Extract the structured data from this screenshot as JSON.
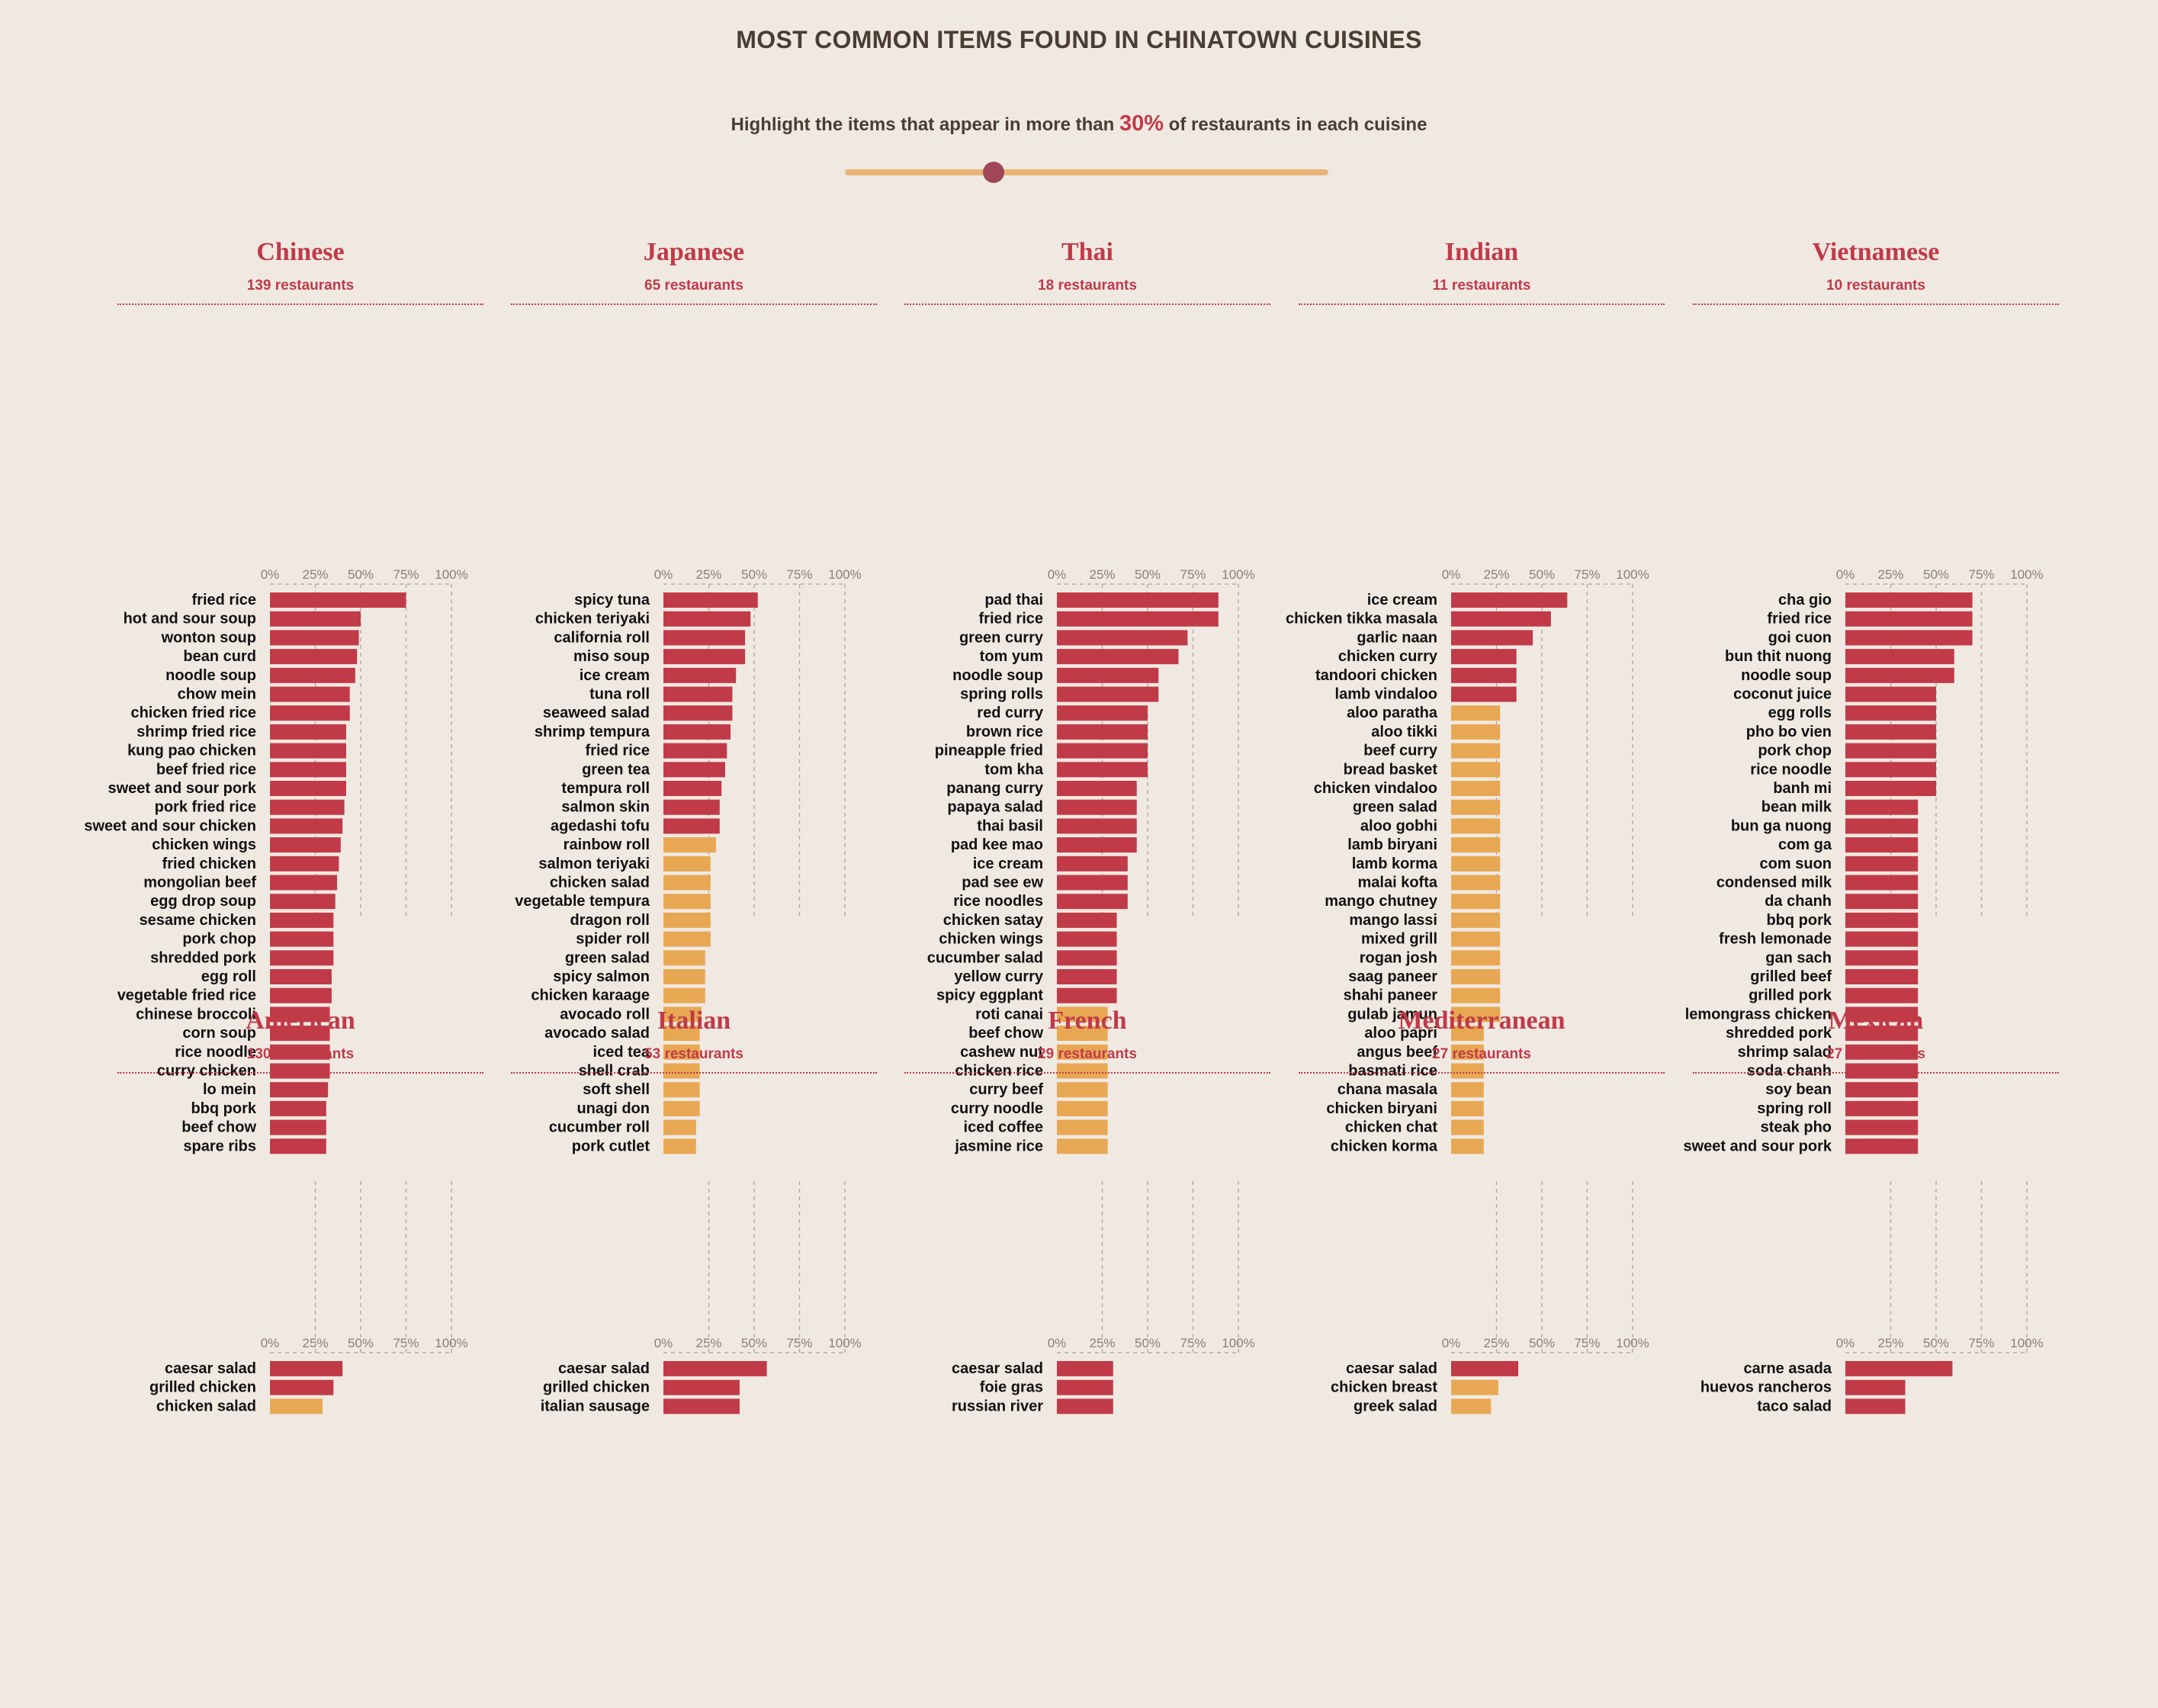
{
  "header": {
    "title": "MOST COMMON ITEMS FOUND IN CHINATOWN CUISINES",
    "subtitle_before": "Highlight the items that appear in more than ",
    "threshold_text": "30%",
    "subtitle_after": " of restaurants in each cuisine"
  },
  "slider": {
    "value": 30,
    "min": 0,
    "max": 100
  },
  "colors": {
    "above": "#c13a48",
    "below": "#e8a853",
    "title": "#c13a48",
    "thumb": "#a04657",
    "track": "#e8b577"
  },
  "chart_data": {
    "type": "bar",
    "orientation": "horizontal",
    "threshold": 30,
    "xlim": [
      0,
      100
    ],
    "ticks": [
      "0%",
      "25%",
      "50%",
      "75%",
      "100%"
    ],
    "panels": [
      {
        "cuisine": "Chinese",
        "restaurants": "139 restaurants",
        "categories": [
          "fried rice",
          "hot and sour soup",
          "wonton soup",
          "bean curd",
          "noodle soup",
          "chow mein",
          "chicken fried rice",
          "shrimp fried rice",
          "kung pao chicken",
          "beef fried rice",
          "sweet and sour pork",
          "pork fried rice",
          "sweet and sour chicken",
          "chicken wings",
          "fried chicken",
          "mongolian beef",
          "egg drop soup",
          "sesame chicken",
          "pork chop",
          "shredded pork",
          "egg roll",
          "vegetable fried rice",
          "chinese broccoli",
          "corn soup",
          "rice noodle",
          "curry chicken",
          "lo mein",
          "bbq pork",
          "beef chow",
          "spare ribs"
        ],
        "values": [
          75,
          50,
          49,
          48,
          47,
          44,
          44,
          42,
          42,
          42,
          42,
          41,
          40,
          39,
          38,
          37,
          36,
          35,
          35,
          35,
          34,
          34,
          33,
          33,
          33,
          33,
          32,
          31,
          31,
          31
        ]
      },
      {
        "cuisine": "Japanese",
        "restaurants": "65 restaurants",
        "categories": [
          "spicy tuna",
          "chicken teriyaki",
          "california roll",
          "miso soup",
          "ice cream",
          "tuna roll",
          "seaweed salad",
          "shrimp tempura",
          "fried rice",
          "green tea",
          "tempura roll",
          "salmon skin",
          "agedashi tofu",
          "rainbow roll",
          "salmon teriyaki",
          "chicken salad",
          "vegetable tempura",
          "dragon roll",
          "spider roll",
          "green salad",
          "spicy salmon",
          "chicken karaage",
          "avocado roll",
          "avocado salad",
          "iced tea",
          "shell crab",
          "soft shell",
          "unagi don",
          "cucumber roll",
          "pork cutlet"
        ],
        "values": [
          52,
          48,
          45,
          45,
          40,
          38,
          38,
          37,
          35,
          34,
          32,
          31,
          31,
          29,
          26,
          26,
          26,
          26,
          26,
          23,
          23,
          23,
          21,
          20,
          20,
          20,
          20,
          20,
          18,
          18
        ]
      },
      {
        "cuisine": "Thai",
        "restaurants": "18 restaurants",
        "categories": [
          "pad thai",
          "fried rice",
          "green curry",
          "tom yum",
          "noodle soup",
          "spring rolls",
          "red curry",
          "brown rice",
          "pineapple fried",
          "tom kha",
          "panang curry",
          "papaya salad",
          "thai basil",
          "pad kee mao",
          "ice cream",
          "pad see ew",
          "rice noodles",
          "chicken satay",
          "chicken wings",
          "cucumber salad",
          "yellow curry",
          "spicy eggplant",
          "roti canai",
          "beef chow",
          "cashew nut",
          "chicken rice",
          "curry beef",
          "curry noodle",
          "iced coffee",
          "jasmine rice"
        ],
        "values": [
          89,
          89,
          72,
          67,
          56,
          56,
          50,
          50,
          50,
          50,
          44,
          44,
          44,
          44,
          39,
          39,
          39,
          33,
          33,
          33,
          33,
          33,
          28,
          28,
          28,
          28,
          28,
          28,
          28,
          28
        ]
      },
      {
        "cuisine": "Indian",
        "restaurants": "11 restaurants",
        "categories": [
          "ice cream",
          "chicken tikka masala",
          "garlic naan",
          "chicken curry",
          "tandoori chicken",
          "lamb vindaloo",
          "aloo paratha",
          "aloo tikki",
          "beef curry",
          "bread basket",
          "chicken vindaloo",
          "green salad",
          "aloo gobhi",
          "lamb biryani",
          "lamb korma",
          "malai kofta",
          "mango chutney",
          "mango lassi",
          "mixed grill",
          "rogan josh",
          "saag paneer",
          "shahi paneer",
          "gulab jamun",
          "aloo papri",
          "angus beef",
          "basmati rice",
          "chana masala",
          "chicken biryani",
          "chicken chat",
          "chicken korma"
        ],
        "values": [
          64,
          55,
          45,
          36,
          36,
          36,
          27,
          27,
          27,
          27,
          27,
          27,
          27,
          27,
          27,
          27,
          27,
          27,
          27,
          27,
          27,
          27,
          27,
          18,
          18,
          18,
          18,
          18,
          18,
          18
        ]
      },
      {
        "cuisine": "Vietnamese",
        "restaurants": "10 restaurants",
        "categories": [
          "cha gio",
          "fried rice",
          "goi cuon",
          "bun thit nuong",
          "noodle soup",
          "coconut juice",
          "egg rolls",
          "pho bo vien",
          "pork chop",
          "rice noodle",
          "banh mi",
          "bean milk",
          "bun ga nuong",
          "com ga",
          "com suon",
          "condensed milk",
          "da chanh",
          "bbq pork",
          "fresh lemonade",
          "gan sach",
          "grilled beef",
          "grilled pork",
          "lemongrass chicken",
          "shredded pork",
          "shrimp salad",
          "soda chanh",
          "soy bean",
          "spring roll",
          "steak pho",
          "sweet and sour pork"
        ],
        "values": [
          70,
          70,
          70,
          60,
          60,
          50,
          50,
          50,
          50,
          50,
          50,
          40,
          40,
          40,
          40,
          40,
          40,
          40,
          40,
          40,
          40,
          40,
          40,
          40,
          40,
          40,
          40,
          40,
          40,
          40
        ]
      },
      {
        "cuisine": "American",
        "restaurants": "130 restaurants",
        "categories": [
          "caesar salad",
          "grilled chicken",
          "chicken salad"
        ],
        "values": [
          40,
          35,
          29
        ]
      },
      {
        "cuisine": "Italian",
        "restaurants": "53 restaurants",
        "categories": [
          "caesar salad",
          "grilled chicken",
          "italian sausage"
        ],
        "values": [
          57,
          42,
          42
        ]
      },
      {
        "cuisine": "French",
        "restaurants": "29 restaurants",
        "categories": [
          "caesar salad",
          "foie gras",
          "russian river"
        ],
        "values": [
          31,
          31,
          31
        ]
      },
      {
        "cuisine": "Mediterranean",
        "restaurants": "27 restaurants",
        "categories": [
          "caesar salad",
          "chicken breast",
          "greek salad"
        ],
        "values": [
          37,
          26,
          22
        ]
      },
      {
        "cuisine": "Mexican",
        "restaurants": "27 restaurants",
        "categories": [
          "carne asada",
          "huevos rancheros",
          "taco salad"
        ],
        "values": [
          59,
          33,
          33
        ]
      }
    ]
  }
}
